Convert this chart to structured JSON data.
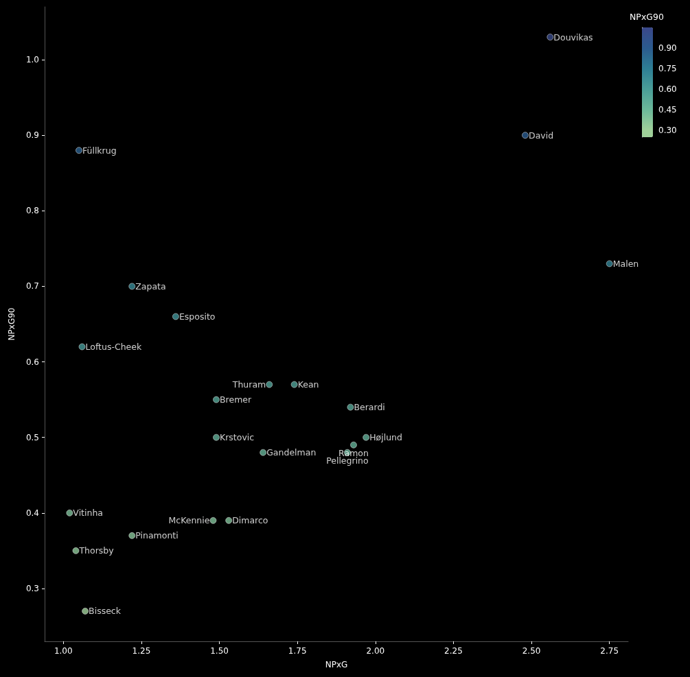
{
  "chart_data": {
    "type": "scatter",
    "xlabel": "NPxG",
    "ylabel": "NPxG90",
    "clabel": "NPxG90",
    "x": [
      2.56,
      2.48,
      2.75,
      1.05,
      1.22,
      1.36,
      1.06,
      1.66,
      1.74,
      1.49,
      1.92,
      1.97,
      1.93,
      1.91,
      1.49,
      1.64,
      1.02,
      1.48,
      1.53,
      1.22,
      1.04,
      1.07
    ],
    "values": [
      1.03,
      0.9,
      0.73,
      0.88,
      0.7,
      0.66,
      0.62,
      0.57,
      0.57,
      0.55,
      0.54,
      0.5,
      0.49,
      0.48,
      0.5,
      0.48,
      0.4,
      0.39,
      0.39,
      0.37,
      0.35,
      0.27
    ],
    "cvalues": [
      1.03,
      0.9,
      0.73,
      0.88,
      0.7,
      0.66,
      0.62,
      0.57,
      0.57,
      0.55,
      0.54,
      0.5,
      0.49,
      0.48,
      0.5,
      0.48,
      0.4,
      0.39,
      0.39,
      0.37,
      0.35,
      0.27
    ],
    "clim": [
      0.25,
      1.05
    ],
    "cticks": [
      {
        "value": 0.3,
        "label": "0.30"
      },
      {
        "value": 0.45,
        "label": "0.45"
      },
      {
        "value": 0.6,
        "label": "0.60"
      },
      {
        "value": 0.75,
        "label": "0.75"
      },
      {
        "value": 0.9,
        "label": "0.90"
      }
    ],
    "xlim": [
      0.94,
      2.81
    ],
    "xticks": [
      {
        "value": 1.0,
        "label": "1.00"
      },
      {
        "value": 1.25,
        "label": "1.25"
      },
      {
        "value": 1.5,
        "label": "1.50"
      },
      {
        "value": 1.75,
        "label": "1.75"
      },
      {
        "value": 2.0,
        "label": "2.00"
      },
      {
        "value": 2.25,
        "label": "2.25"
      },
      {
        "value": 2.5,
        "label": "2.50"
      },
      {
        "value": 2.75,
        "label": "2.75"
      }
    ],
    "ylim": [
      0.23,
      1.07
    ],
    "yticks": [
      {
        "value": 0.3,
        "label": "0.3"
      },
      {
        "value": 0.4,
        "label": "0.4"
      },
      {
        "value": 0.5,
        "label": "0.5"
      },
      {
        "value": 0.6,
        "label": "0.6"
      },
      {
        "value": 0.7,
        "label": "0.7"
      },
      {
        "value": 0.8,
        "label": "0.8"
      },
      {
        "value": 0.9,
        "label": "0.9"
      },
      {
        "value": 1.0,
        "label": "1.0"
      }
    ],
    "grid": false,
    "marker": "circle",
    "annotations": [
      {
        "text": "Douvikas",
        "x": 2.56,
        "y": 1.03
      },
      {
        "text": "David",
        "x": 2.48,
        "y": 0.9
      },
      {
        "text": "Malen",
        "x": 2.75,
        "y": 0.73
      },
      {
        "text": "Füllkrug",
        "x": 1.05,
        "y": 0.88
      },
      {
        "text": "Zapata",
        "x": 1.22,
        "y": 0.7
      },
      {
        "text": "Esposito",
        "x": 1.36,
        "y": 0.66
      },
      {
        "text": "Loftus-Cheek",
        "x": 1.06,
        "y": 0.62
      },
      {
        "text": "Thuram",
        "x": 1.66,
        "y": 0.57
      },
      {
        "text": "Kean",
        "x": 1.74,
        "y": 0.57
      },
      {
        "text": "Bremer",
        "x": 1.49,
        "y": 0.55
      },
      {
        "text": "Berardi",
        "x": 1.92,
        "y": 0.54
      },
      {
        "text": "Højlund",
        "x": 1.97,
        "y": 0.5
      },
      {
        "text": "Ramon",
        "x": 1.93,
        "y": 0.49
      },
      {
        "text": "Pellegrino",
        "x": 1.91,
        "y": 0.48
      },
      {
        "text": "Krstovic",
        "x": 1.49,
        "y": 0.5
      },
      {
        "text": "Gandelman",
        "x": 1.64,
        "y": 0.48
      },
      {
        "text": "Vitinha",
        "x": 1.02,
        "y": 0.4
      },
      {
        "text": "McKennie",
        "x": 1.48,
        "y": 0.39
      },
      {
        "text": "Dimarco",
        "x": 1.53,
        "y": 0.39
      },
      {
        "text": "Pinamonti",
        "x": 1.22,
        "y": 0.37
      },
      {
        "text": "Thorsby",
        "x": 1.04,
        "y": 0.35
      },
      {
        "text": "Bisseck",
        "x": 1.07,
        "y": 0.27
      }
    ]
  }
}
